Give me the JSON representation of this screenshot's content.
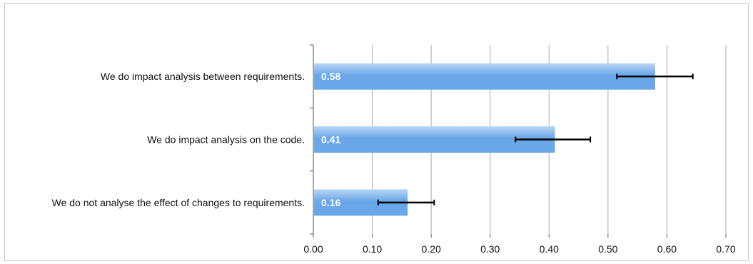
{
  "chart_data": {
    "type": "bar",
    "orientation": "horizontal",
    "categories": [
      "We do impact analysis between requirements.",
      "We do impact analysis on the code.",
      "We do not analyse the effect of changes to requirements."
    ],
    "values": [
      0.58,
      0.41,
      0.16
    ],
    "data_labels": [
      "0.58",
      "0.41",
      "0.16"
    ],
    "error_bars": [
      {
        "low": 0.515,
        "high": 0.644
      },
      {
        "low": 0.343,
        "high": 0.47
      },
      {
        "low": 0.11,
        "high": 0.205
      }
    ],
    "xlim": [
      0,
      0.7
    ],
    "x_ticks": [
      0,
      0.1,
      0.2,
      0.3,
      0.4,
      0.5,
      0.6,
      0.7
    ],
    "x_tick_labels": [
      "0.00",
      "0.10",
      "0.20",
      "0.30",
      "0.40",
      "0.50",
      "0.60",
      "0.70"
    ],
    "grid": "vertical",
    "bar_color": "#6aa7e8",
    "bar_color_light": "#b9d6f6",
    "error_bar_color": "#000000",
    "grid_color": "#a9a9a9",
    "title": "",
    "xlabel": "",
    "ylabel": ""
  }
}
